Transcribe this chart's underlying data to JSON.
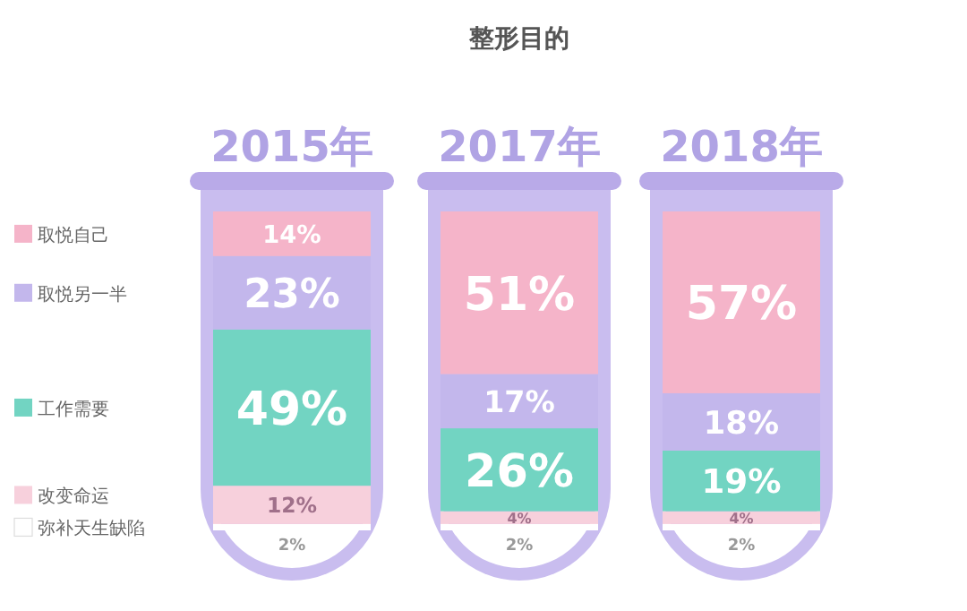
{
  "chart_data": {
    "type": "bar",
    "stacked": true,
    "title": "整形目的",
    "categories": [
      "2015年",
      "2017年",
      "2018年"
    ],
    "legend": "left",
    "series": [
      {
        "name": "弥补天生缺陷",
        "color": "#ffffff",
        "values": [
          2,
          2,
          2
        ],
        "value_labels": [
          "2%",
          "2%",
          "2%"
        ]
      },
      {
        "name": "改变命运",
        "color": "#f7d0dc",
        "values": [
          12,
          4,
          4
        ],
        "value_labels": [
          "12%",
          "4%",
          "4%"
        ]
      },
      {
        "name": "工作需要",
        "color": "#72d4c2",
        "values": [
          49,
          26,
          19
        ],
        "value_labels": [
          "49%",
          "26%",
          "19%"
        ]
      },
      {
        "name": "取悦另一半",
        "color": "#c3b7ec",
        "values": [
          23,
          17,
          18
        ],
        "value_labels": [
          "23%",
          "17%",
          "18%"
        ]
      },
      {
        "name": "取悦自己",
        "color": "#f5b4c9",
        "values": [
          14,
          51,
          57
        ],
        "value_labels": [
          "14%",
          "51%",
          "57%"
        ]
      }
    ]
  }
}
